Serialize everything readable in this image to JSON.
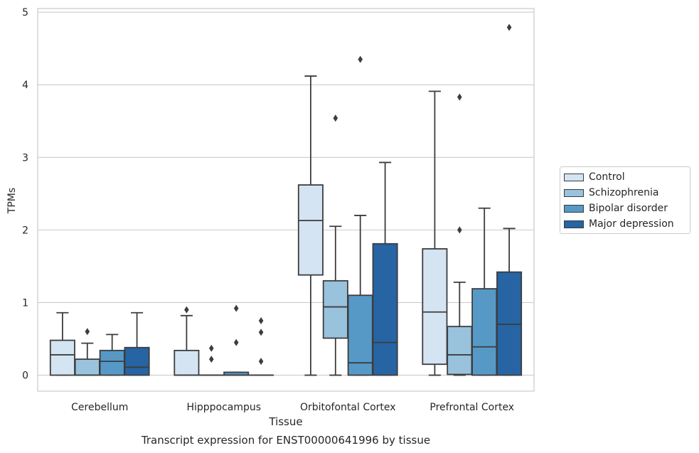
{
  "chart_data": {
    "type": "box",
    "title": "Transcript expression for ENST00000641996 by tissue",
    "xlabel": "Tissue",
    "ylabel": "TPMs",
    "ylim": [
      -0.22,
      5.05
    ],
    "yticks": [
      0,
      1,
      2,
      3,
      4,
      5
    ],
    "grid": true,
    "legend_position": "right",
    "categories": [
      "Cerebellum",
      "Hipppocampus",
      "Orbitofontal Cortex",
      "Prefrontal Cortex"
    ],
    "series": [
      {
        "name": "Control",
        "color": "#d4e4f2",
        "boxes": [
          {
            "q1": 0,
            "median": 0.28,
            "q3": 0.48,
            "whislo": 0,
            "whishi": 0.86,
            "fliers": []
          },
          {
            "q1": 0,
            "median": 0,
            "q3": 0.34,
            "whislo": 0,
            "whishi": 0.82,
            "fliers": [
              0.9
            ]
          },
          {
            "q1": 1.38,
            "median": 2.13,
            "q3": 2.62,
            "whislo": 0,
            "whishi": 4.12,
            "fliers": []
          },
          {
            "q1": 0.15,
            "median": 0.87,
            "q3": 1.74,
            "whislo": 0,
            "whishi": 3.91,
            "fliers": []
          }
        ]
      },
      {
        "name": "Schizophrenia",
        "color": "#99c2dd",
        "boxes": [
          {
            "q1": 0,
            "median": 0,
            "q3": 0.22,
            "whislo": 0,
            "whishi": 0.44,
            "fliers": [
              0.6
            ]
          },
          {
            "q1": 0,
            "median": 0,
            "q3": 0,
            "whislo": 0,
            "whishi": 0,
            "fliers": [
              0.22,
              0.37
            ]
          },
          {
            "q1": 0.51,
            "median": 0.94,
            "q3": 1.3,
            "whislo": 0,
            "whishi": 2.05,
            "fliers": [
              3.54
            ]
          },
          {
            "q1": 0.01,
            "median": 0.28,
            "q3": 0.67,
            "whislo": 0,
            "whishi": 1.28,
            "fliers": [
              2.0,
              3.83
            ]
          }
        ]
      },
      {
        "name": "Bipolar disorder",
        "color": "#5699c7",
        "boxes": [
          {
            "q1": 0,
            "median": 0.19,
            "q3": 0.34,
            "whislo": 0,
            "whishi": 0.56,
            "fliers": []
          },
          {
            "q1": 0,
            "median": 0,
            "q3": 0.04,
            "whislo": 0,
            "whishi": 0.04,
            "fliers": [
              0.45,
              0.92
            ]
          },
          {
            "q1": 0,
            "median": 0.17,
            "q3": 1.1,
            "whislo": 0,
            "whishi": 2.2,
            "fliers": [
              4.35
            ]
          },
          {
            "q1": 0,
            "median": 0.39,
            "q3": 1.19,
            "whislo": 0,
            "whishi": 2.3,
            "fliers": []
          }
        ]
      },
      {
        "name": "Major depression",
        "color": "#2664a4",
        "boxes": [
          {
            "q1": 0,
            "median": 0.11,
            "q3": 0.38,
            "whislo": 0,
            "whishi": 0.86,
            "fliers": []
          },
          {
            "q1": 0,
            "median": 0,
            "q3": 0,
            "whislo": 0,
            "whishi": 0,
            "fliers": [
              0.19,
              0.59,
              0.75
            ]
          },
          {
            "q1": 0,
            "median": 0.45,
            "q3": 1.81,
            "whislo": 0,
            "whishi": 2.93,
            "fliers": []
          },
          {
            "q1": 0,
            "median": 0.7,
            "q3": 1.42,
            "whislo": 0,
            "whishi": 2.02,
            "fliers": [
              4.79
            ]
          }
        ]
      }
    ]
  }
}
